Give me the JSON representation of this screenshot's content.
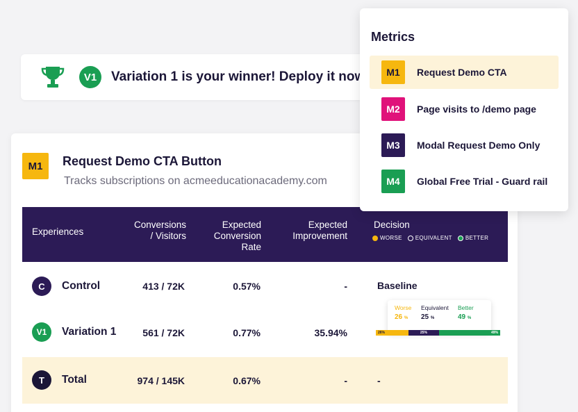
{
  "banner": {
    "badge": "V1",
    "text": "Variation 1 is your winner! Deploy it now."
  },
  "card": {
    "tag": "M1",
    "title": "Request Demo CTA Button",
    "subtitle": "Tracks subscriptions on acmeeducationacademy.com"
  },
  "table": {
    "headers": {
      "experiences": "Experiences",
      "conv_line1": "Conversions",
      "conv_line2": "/ Visitors",
      "rate_line1": "Expected",
      "rate_line2": "Conversion",
      "rate_line3": "Rate",
      "imp_line1": "Expected",
      "imp_line2": "Improvement",
      "decision": "Decision"
    },
    "legend": {
      "worse": "WORSE",
      "equivalent": "EQUIVALENT",
      "better": "BETTER"
    },
    "rows": [
      {
        "badge": "C",
        "name": "Control",
        "conversions": "413 / 72K",
        "rate": "0.57%",
        "improvement": "-",
        "decision": "Baseline"
      },
      {
        "badge": "V1",
        "name": "Variation 1",
        "conversions": "561 / 72K",
        "rate": "0.77%",
        "improvement": "35.94%"
      },
      {
        "badge": "T",
        "name": "Total",
        "conversions": "974 / 145K",
        "rate": "0.67%",
        "improvement": "-",
        "decision": "-"
      }
    ]
  },
  "decision_tooltip": {
    "worse_label": "Worse",
    "worse_value": "26",
    "worse_unit": "%",
    "equivalent_label": "Equivalent",
    "equivalent_value": "25",
    "equivalent_unit": "%",
    "better_label": "Better",
    "better_value": "49",
    "better_unit": "%"
  },
  "decision_bar": {
    "worse": 0.26,
    "equivalent": 0.25,
    "better": 0.49,
    "worse_label": "26%",
    "equivalent_label": "25%",
    "better_label": "49%"
  },
  "metrics": {
    "title": "Metrics",
    "items": [
      {
        "tag": "M1",
        "label": "Request Demo CTA",
        "color": "#f6b70f",
        "selected": true
      },
      {
        "tag": "M2",
        "label": "Page visits to /demo page",
        "color": "#e0127a"
      },
      {
        "tag": "M3",
        "label": "Modal Request Demo Only",
        "color": "#2c1b56"
      },
      {
        "tag": "M4",
        "label": "Global Free Trial - Guard rail",
        "color": "#1a9e53"
      }
    ]
  },
  "colors": {
    "worse": "#f6b70f",
    "equivalent": "#2c1b56",
    "better": "#1a9e53",
    "header": "#2c1b56",
    "highlight": "#fdf3d9"
  }
}
